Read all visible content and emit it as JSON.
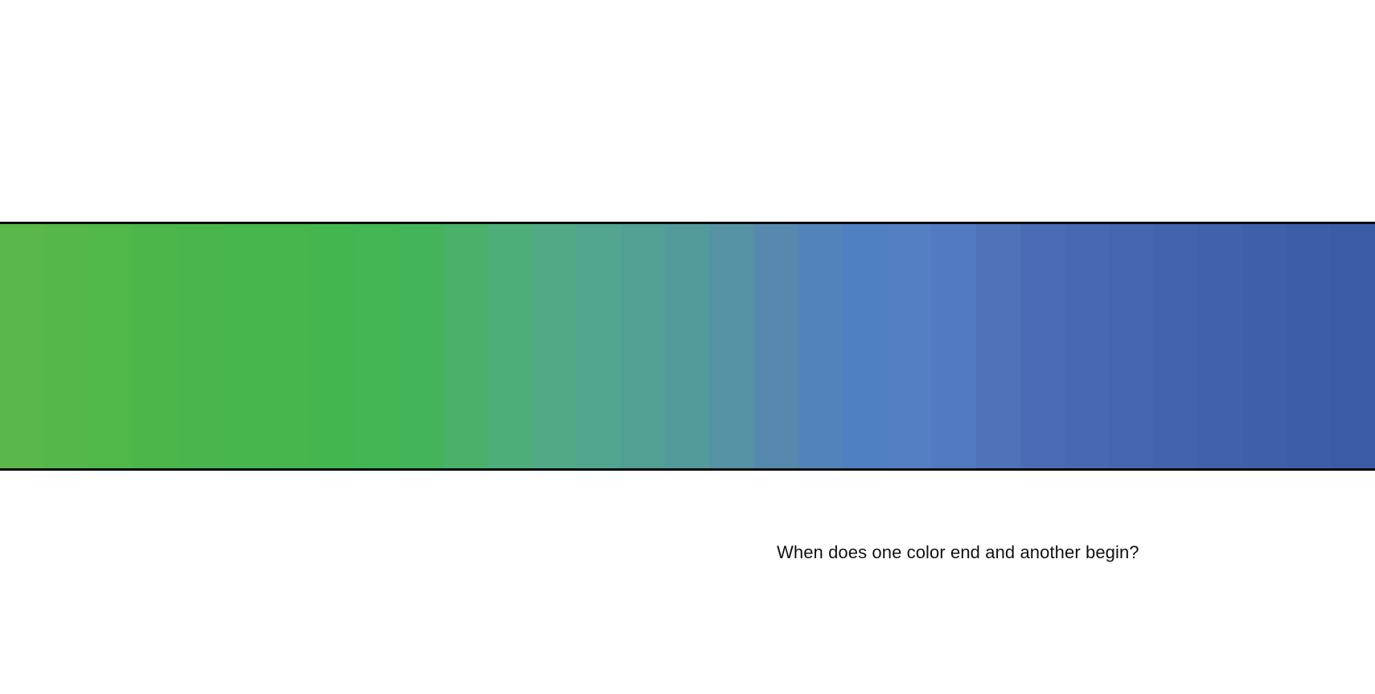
{
  "caption": "When does one color end and another begin?",
  "band_colors": [
    "#5ab749",
    "#55b749",
    "#50b749",
    "#4cb64a",
    "#49b64b",
    "#47b64c",
    "#46b64d",
    "#44b64f",
    "#42b753",
    "#44b45a",
    "#49b16a",
    "#4dae7a",
    "#51aa85",
    "#52a58e",
    "#529f94",
    "#539a9c",
    "#5592a4",
    "#5689ad",
    "#5283bb",
    "#4f80c1",
    "#557fc3",
    "#527ac0",
    "#4f73b9",
    "#4b6cb4",
    "#4868b1",
    "#4565af",
    "#4363ad",
    "#4161ab",
    "#3f5fa9",
    "#3d5da8",
    "#3b5ba7"
  ]
}
